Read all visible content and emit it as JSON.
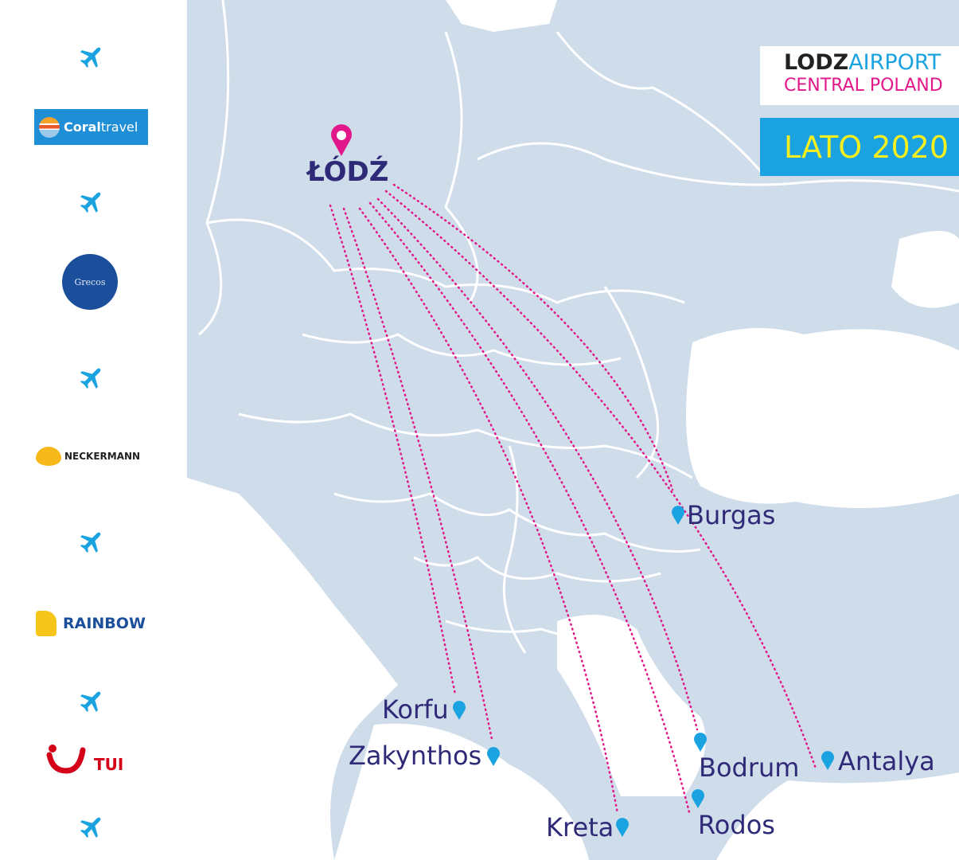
{
  "brand": {
    "lodz": "LODZ",
    "airport": "AIRPORT",
    "subtitle": "CENTRAL POLAND"
  },
  "season": "LATO 2020",
  "origin": "ŁÓDŹ",
  "destinations": [
    "Burgas",
    "Korfu",
    "Zakynthos",
    "Kreta",
    "Bodrum",
    "Rodos",
    "Antalya"
  ],
  "operators": {
    "coral": {
      "bold": "Coral",
      "light": "travel"
    },
    "grecos": "Grecos",
    "neckermann": "NECKERMANN",
    "rainbow": "RAINBOW",
    "tui": "TUI"
  },
  "colors": {
    "land": "#cfdcea",
    "sea": "#ffffff",
    "route": "#e2178a",
    "pin": "#1aa3e0",
    "label": "#2f2a78",
    "plane": "#1aa3e0"
  },
  "icons": {
    "plane": "airplane-icon",
    "origin": "map-pin-icon",
    "destination": "location-pin-icon"
  }
}
